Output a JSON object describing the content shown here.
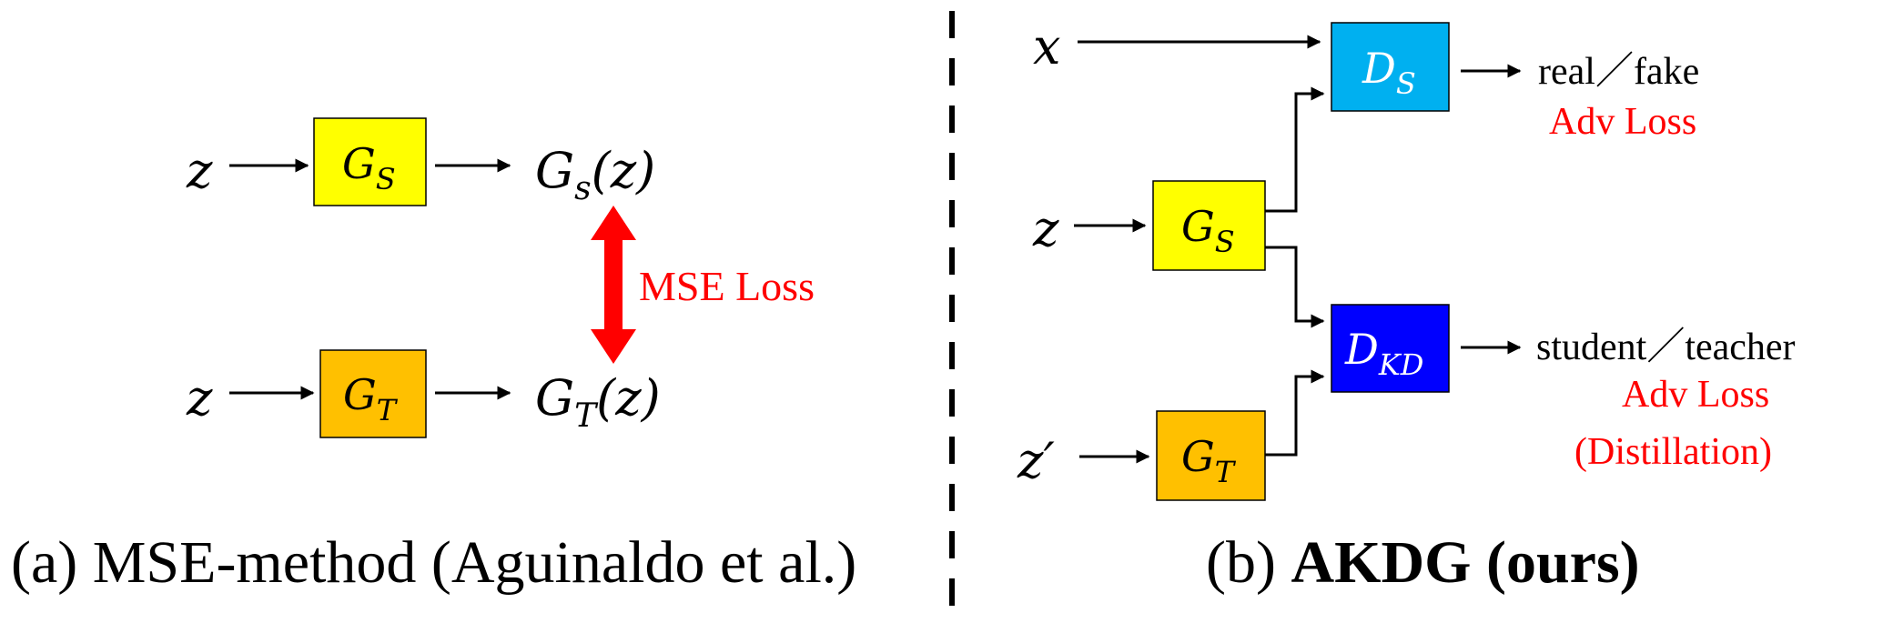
{
  "left": {
    "caption": "(a) MSE-method (Aguinaldo et al.)",
    "student_input": "z",
    "teacher_input": "z",
    "student_box": {
      "base": "G",
      "sub": "S",
      "color": "#FFFF00"
    },
    "teacher_box": {
      "base": "G",
      "sub": "T",
      "color": "#FFC000"
    },
    "student_output": {
      "base": "G",
      "sub": "s",
      "arg": "(z)"
    },
    "teacher_output": {
      "base": "G",
      "sub": "T",
      "arg": "(z)"
    },
    "loss_label": "MSE Loss",
    "loss_color": "#FF0000"
  },
  "right": {
    "caption_prefix": "(b) ",
    "caption_bold": "AKDG (ours)",
    "real_input": "x",
    "student_input": "z",
    "teacher_input": "z′",
    "student_box": {
      "base": "G",
      "sub": "S",
      "color": "#FFFF00"
    },
    "teacher_box": {
      "base": "G",
      "sub": "T",
      "color": "#FFC000"
    },
    "disc_s": {
      "base": "D",
      "sub": "S",
      "color": "#00B0F0"
    },
    "disc_kd": {
      "base": "D",
      "sub": "KD",
      "color": "#0000FF"
    },
    "disc_s_output": "real／fake",
    "disc_s_loss": "Adv Loss",
    "disc_kd_output": "student／teacher",
    "disc_kd_loss": "Adv Loss",
    "disc_kd_loss_note": "(Distillation)",
    "loss_color": "#FF0000"
  }
}
